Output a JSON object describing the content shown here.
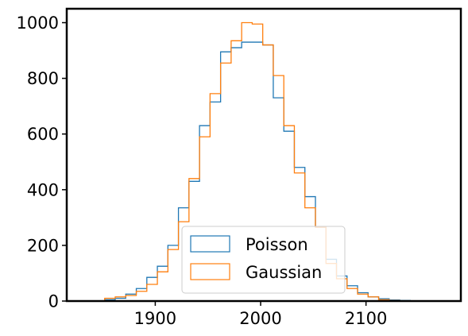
{
  "chart_data": {
    "type": "histogram",
    "xlim": [
      1816,
      2190
    ],
    "ylim": [
      0,
      1050
    ],
    "bin_width": 10,
    "bin_edges": [
      1852,
      1862,
      1872,
      1882,
      1892,
      1902,
      1912,
      1922,
      1932,
      1942,
      1952,
      1962,
      1972,
      1982,
      1992,
      2002,
      2012,
      2022,
      2032,
      2042,
      2052,
      2062,
      2072,
      2082,
      2092,
      2102,
      2112,
      2122,
      2132,
      2142,
      2152,
      2162
    ],
    "x_ticks": [
      1900,
      2000,
      2100
    ],
    "x_tick_labels": [
      "1900",
      "2000",
      "2100"
    ],
    "y_ticks": [
      0,
      200,
      400,
      600,
      800,
      1000
    ],
    "y_tick_labels": [
      "0",
      "200",
      "400",
      "600",
      "800",
      "1000"
    ],
    "grid": false,
    "legend_position": "lower-center",
    "series": [
      {
        "name": "Poisson",
        "color": "#1f77b4",
        "values": [
          5,
          10,
          25,
          45,
          85,
          125,
          200,
          335,
          430,
          630,
          715,
          895,
          910,
          930,
          930,
          920,
          730,
          610,
          480,
          375,
          265,
          150,
          90,
          55,
          30,
          15,
          8,
          4,
          2,
          1,
          0
        ]
      },
      {
        "name": "Gaussian",
        "color": "#ff7f0e",
        "values": [
          10,
          15,
          20,
          35,
          60,
          105,
          185,
          285,
          440,
          590,
          745,
          855,
          935,
          1000,
          995,
          920,
          810,
          630,
          460,
          335,
          265,
          135,
          80,
          45,
          25,
          15,
          5,
          2,
          1,
          0,
          0
        ]
      }
    ]
  }
}
